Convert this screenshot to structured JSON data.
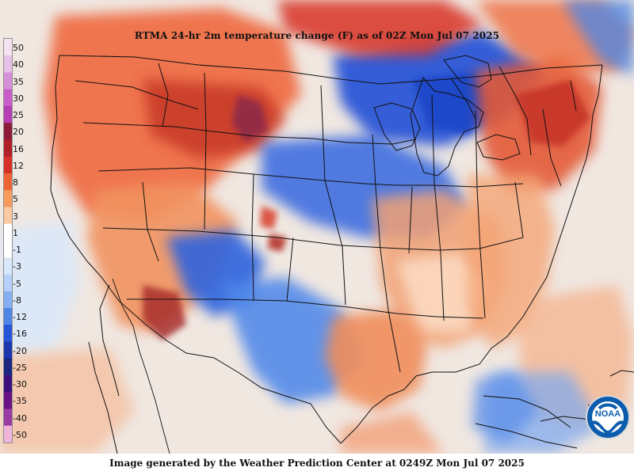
{
  "title": "RTMA 24-hr 2m temperature change (F) as of 02Z Mon Jul 07 2025",
  "footer": "Image generated by the Weather Prediction Center at 0249Z Mon Jul 07 2025",
  "noaa_text": "NOAA",
  "legend": {
    "labels": [
      "50",
      "40",
      "35",
      "30",
      "25",
      "20",
      "16",
      "12",
      "8",
      "5",
      "3",
      "1",
      "-1",
      "-3",
      "-5",
      "-8",
      "-12",
      "-16",
      "-20",
      "-25",
      "-30",
      "-35",
      "-40",
      "-50"
    ],
    "colors": [
      "#f2e2f2",
      "#e7c0e7",
      "#d78fd7",
      "#c85cc8",
      "#b53db5",
      "#8d1a36",
      "#b11f29",
      "#d73026",
      "#ef6436",
      "#f69a5d",
      "#fac9a2",
      "#ffffff",
      "#ffffff",
      "#d8e8fb",
      "#b5d1fb",
      "#85aff1",
      "#4f85e6",
      "#2855d8",
      "#1d36ad",
      "#1d2680",
      "#3d0f7b",
      "#6b1386",
      "#9a3ca3",
      "#f0b4db"
    ]
  }
}
